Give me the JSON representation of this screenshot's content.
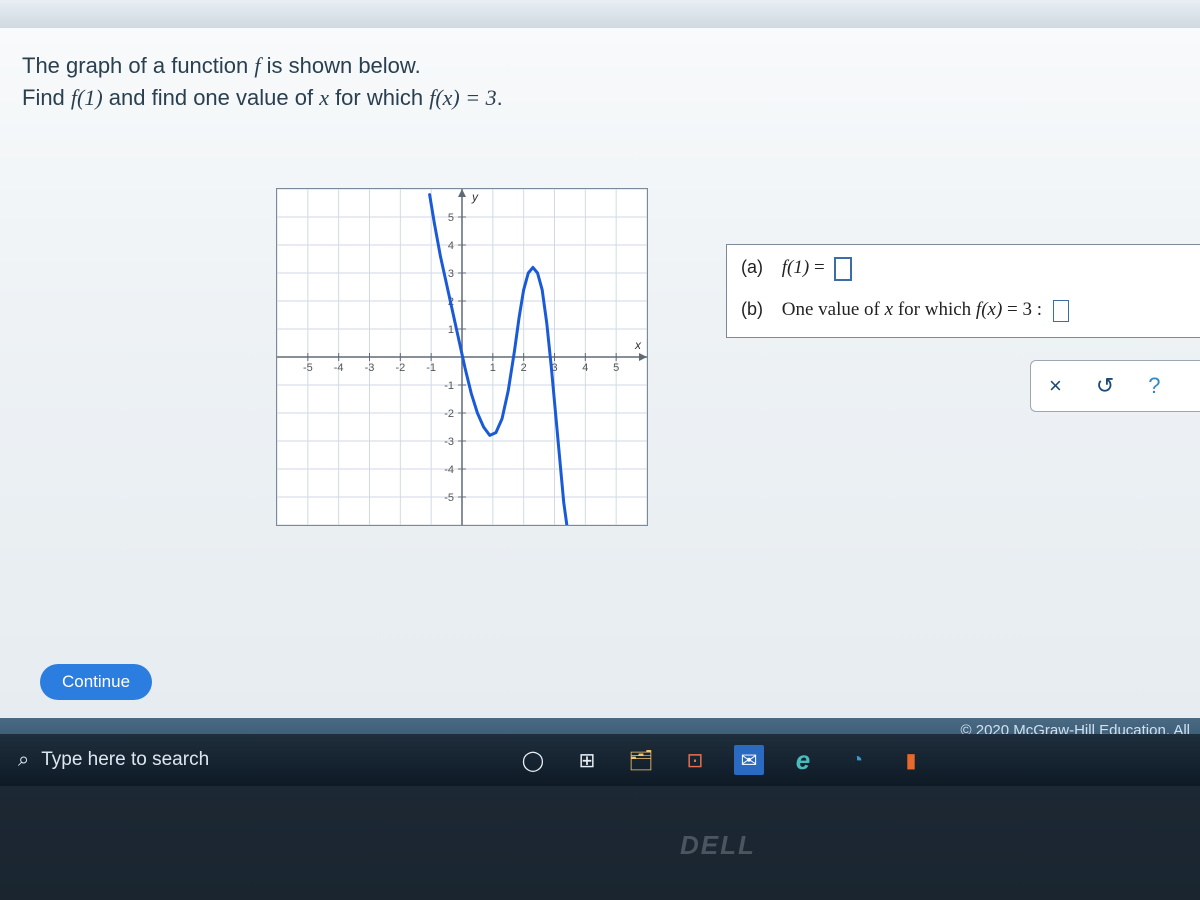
{
  "browser": {
    "top_bar_color": "#e0e6ec"
  },
  "question": {
    "line1_pre": "The graph of a function ",
    "line1_f": "f",
    "line1_post": " is shown below.",
    "line2_pre": "Find ",
    "line2_f1": "f(1)",
    "line2_mid": " and find one value of ",
    "line2_x": "x",
    "line2_mid2": " for which ",
    "line2_f2": "f(x) = 3",
    "line2_end": "."
  },
  "graph": {
    "type": "line",
    "background_color": "#ffffff",
    "grid_color": "#d0dae4",
    "axis_color": "#606a74",
    "curve_color": "#1a5ad8",
    "curve_width": 3,
    "xlim": [
      -6,
      6
    ],
    "ylim": [
      -6,
      6
    ],
    "xtick_step": 1,
    "ytick_step": 1,
    "xticks_labeled": [
      -5,
      -4,
      -3,
      -2,
      -1,
      1,
      2,
      3,
      4,
      5
    ],
    "yticks_labeled": [
      -5,
      -4,
      -3,
      -2,
      -1,
      1,
      2,
      3,
      4,
      5
    ],
    "xlabel": "x",
    "ylabel": "y",
    "label_fontsize": 12,
    "tick_fontsize": 11,
    "curve_points": [
      [
        -1.05,
        5.8
      ],
      [
        -0.9,
        4.8
      ],
      [
        -0.7,
        3.6
      ],
      [
        -0.5,
        2.6
      ],
      [
        -0.3,
        1.6
      ],
      [
        -0.1,
        0.6
      ],
      [
        0.1,
        -0.4
      ],
      [
        0.3,
        -1.3
      ],
      [
        0.5,
        -2.0
      ],
      [
        0.7,
        -2.5
      ],
      [
        0.9,
        -2.8
      ],
      [
        1.1,
        -2.7
      ],
      [
        1.3,
        -2.2
      ],
      [
        1.5,
        -1.2
      ],
      [
        1.7,
        0.2
      ],
      [
        1.85,
        1.4
      ],
      [
        2.0,
        2.4
      ],
      [
        2.15,
        3.0
      ],
      [
        2.3,
        3.2
      ],
      [
        2.45,
        3.0
      ],
      [
        2.6,
        2.4
      ],
      [
        2.75,
        1.2
      ],
      [
        2.9,
        -0.4
      ],
      [
        3.05,
        -2.2
      ],
      [
        3.2,
        -4.0
      ],
      [
        3.3,
        -5.2
      ],
      [
        3.4,
        -6.0
      ]
    ]
  },
  "answers": {
    "a": {
      "label": "(a)",
      "expr_lhs": "f(1)",
      "eq": " = ",
      "value": ""
    },
    "b": {
      "label": "(b)",
      "text_pre": "One value of ",
      "x": "x",
      "text_mid": " for which ",
      "expr": "f(x)",
      "eq": " = 3 : ",
      "value": ""
    }
  },
  "tools": {
    "clear": "×",
    "reset": "↺",
    "help": "?"
  },
  "continue_label": "Continue",
  "copyright": "© 2020 McGraw-Hill Education. All",
  "taskbar": {
    "search_placeholder": "Type here to search",
    "icons": [
      {
        "name": "cortana",
        "glyph": "◯",
        "bg": "transparent",
        "fg": "#e8eef4"
      },
      {
        "name": "taskview",
        "glyph": "⊞",
        "bg": "transparent",
        "fg": "#e8eef4"
      },
      {
        "name": "file-explorer",
        "glyph": "🗂",
        "bg": "transparent",
        "fg": "#f4c66a"
      },
      {
        "name": "store",
        "glyph": "⊡",
        "bg": "transparent",
        "fg": "#e87050"
      },
      {
        "name": "mail",
        "glyph": "✉",
        "bg": "#2a6ac0",
        "fg": "#fff"
      },
      {
        "name": "ie",
        "glyph": "e",
        "bg": "transparent",
        "fg": "#4ababa",
        "italic": true
      },
      {
        "name": "edge",
        "glyph": "◔",
        "bg": "transparent",
        "fg": "#3a9ad0"
      },
      {
        "name": "office",
        "glyph": "▮",
        "bg": "transparent",
        "fg": "#e86a2a"
      }
    ]
  },
  "brand": "DELL"
}
